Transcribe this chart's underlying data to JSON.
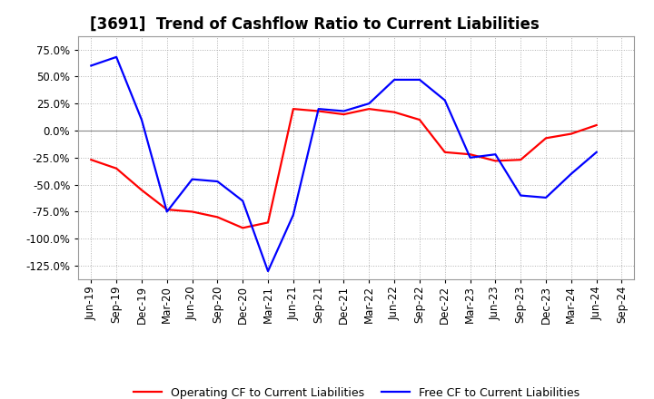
{
  "title": "[3691]  Trend of Cashflow Ratio to Current Liabilities",
  "background_color": "#ffffff",
  "plot_background_color": "#ffffff",
  "grid_color": "#b0b0b0",
  "x_labels": [
    "Jun-19",
    "Sep-19",
    "Dec-19",
    "Mar-20",
    "Jun-20",
    "Sep-20",
    "Dec-20",
    "Mar-21",
    "Jun-21",
    "Sep-21",
    "Dec-21",
    "Mar-22",
    "Jun-22",
    "Sep-22",
    "Dec-22",
    "Mar-23",
    "Jun-23",
    "Sep-23",
    "Dec-23",
    "Mar-24",
    "Jun-24",
    "Sep-24"
  ],
  "operating_cf": [
    -27,
    -35,
    -55,
    -73,
    -75,
    -80,
    -90,
    -85,
    20,
    18,
    15,
    20,
    17,
    10,
    -20,
    -22,
    -28,
    -27,
    -7,
    -3,
    5,
    null
  ],
  "free_cf": [
    60,
    68,
    10,
    -75,
    -45,
    -47,
    -65,
    -130,
    -78,
    20,
    18,
    25,
    47,
    47,
    28,
    -25,
    -22,
    -60,
    -62,
    -40,
    -20,
    null
  ],
  "ylim": [
    -137.5,
    87.5
  ],
  "yticks": [
    75.0,
    50.0,
    25.0,
    0.0,
    -25.0,
    -50.0,
    -75.0,
    -100.0,
    -125.0
  ],
  "operating_color": "#ff0000",
  "free_color": "#0000ff",
  "line_width": 1.6,
  "legend_operating": "Operating CF to Current Liabilities",
  "legend_free": "Free CF to Current Liabilities",
  "title_fontsize": 12,
  "tick_fontsize": 8.5,
  "legend_fontsize": 9
}
